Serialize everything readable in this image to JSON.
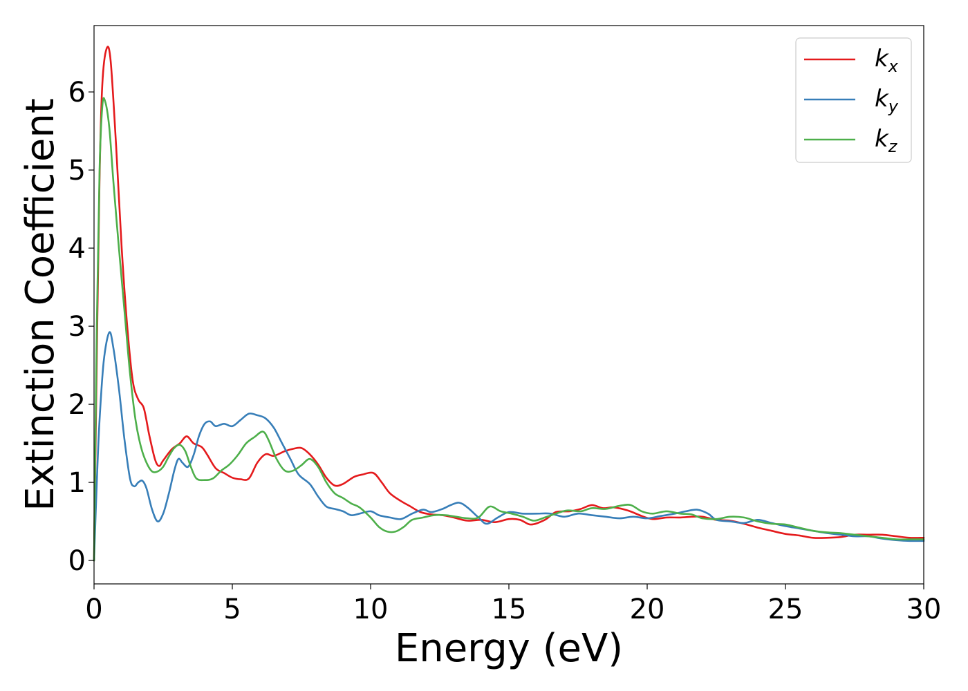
{
  "chart_data": {
    "type": "line",
    "title": "",
    "xlabel": "Energy (eV)",
    "ylabel": "Extinction Coefficient",
    "xlim": [
      0,
      30
    ],
    "ylim": [
      -0.3,
      6.85
    ],
    "xticks": [
      "0",
      "5",
      "10",
      "15",
      "20",
      "25",
      "30"
    ],
    "yticks": [
      "0",
      "1",
      "2",
      "3",
      "4",
      "5",
      "6"
    ],
    "grid": false,
    "legend_position": "top-right",
    "series": [
      {
        "name": "k",
        "subscript": "x",
        "color": "#e41a1c",
        "points": [
          [
            0,
            0
          ],
          [
            0.1,
            2.6
          ],
          [
            0.2,
            4.9
          ],
          [
            0.3,
            6.1
          ],
          [
            0.45,
            6.55
          ],
          [
            0.6,
            6.4
          ],
          [
            0.8,
            5.3
          ],
          [
            1.0,
            4.0
          ],
          [
            1.2,
            3.0
          ],
          [
            1.4,
            2.3
          ],
          [
            1.6,
            2.06
          ],
          [
            1.8,
            1.95
          ],
          [
            2.0,
            1.6
          ],
          [
            2.2,
            1.3
          ],
          [
            2.35,
            1.21
          ],
          [
            2.5,
            1.28
          ],
          [
            2.8,
            1.42
          ],
          [
            3.1,
            1.5
          ],
          [
            3.35,
            1.59
          ],
          [
            3.6,
            1.5
          ],
          [
            3.9,
            1.45
          ],
          [
            4.1,
            1.35
          ],
          [
            4.4,
            1.18
          ],
          [
            4.7,
            1.12
          ],
          [
            5.0,
            1.06
          ],
          [
            5.3,
            1.04
          ],
          [
            5.6,
            1.05
          ],
          [
            5.9,
            1.25
          ],
          [
            6.2,
            1.36
          ],
          [
            6.5,
            1.34
          ],
          [
            6.9,
            1.4
          ],
          [
            7.2,
            1.43
          ],
          [
            7.5,
            1.44
          ],
          [
            7.8,
            1.36
          ],
          [
            8.1,
            1.23
          ],
          [
            8.4,
            1.06
          ],
          [
            8.7,
            0.96
          ],
          [
            9.0,
            0.98
          ],
          [
            9.4,
            1.07
          ],
          [
            9.7,
            1.1
          ],
          [
            10.1,
            1.12
          ],
          [
            10.4,
            1.0
          ],
          [
            10.7,
            0.86
          ],
          [
            11.1,
            0.76
          ],
          [
            11.4,
            0.7
          ],
          [
            11.8,
            0.62
          ],
          [
            12.2,
            0.59
          ],
          [
            12.6,
            0.58
          ],
          [
            13.0,
            0.55
          ],
          [
            13.5,
            0.51
          ],
          [
            14.0,
            0.52
          ],
          [
            14.5,
            0.49
          ],
          [
            15.0,
            0.53
          ],
          [
            15.4,
            0.52
          ],
          [
            15.8,
            0.46
          ],
          [
            16.3,
            0.52
          ],
          [
            16.7,
            0.62
          ],
          [
            17.2,
            0.63
          ],
          [
            17.6,
            0.66
          ],
          [
            18.0,
            0.71
          ],
          [
            18.4,
            0.67
          ],
          [
            18.8,
            0.68
          ],
          [
            19.3,
            0.64
          ],
          [
            19.8,
            0.57
          ],
          [
            20.2,
            0.53
          ],
          [
            20.7,
            0.55
          ],
          [
            21.2,
            0.55
          ],
          [
            21.6,
            0.56
          ],
          [
            22.0,
            0.56
          ],
          [
            22.5,
            0.52
          ],
          [
            23.0,
            0.51
          ],
          [
            23.5,
            0.47
          ],
          [
            24.0,
            0.42
          ],
          [
            24.5,
            0.38
          ],
          [
            25.0,
            0.34
          ],
          [
            25.5,
            0.32
          ],
          [
            26.0,
            0.29
          ],
          [
            26.5,
            0.29
          ],
          [
            27.0,
            0.3
          ],
          [
            27.5,
            0.33
          ],
          [
            28.0,
            0.33
          ],
          [
            28.5,
            0.33
          ],
          [
            29.0,
            0.31
          ],
          [
            29.5,
            0.29
          ],
          [
            30.0,
            0.29
          ]
        ]
      },
      {
        "name": "k",
        "subscript": "y",
        "color": "#377eb8",
        "points": [
          [
            0,
            0
          ],
          [
            0.1,
            1.0
          ],
          [
            0.2,
            1.8
          ],
          [
            0.35,
            2.55
          ],
          [
            0.55,
            2.92
          ],
          [
            0.7,
            2.72
          ],
          [
            0.9,
            2.2
          ],
          [
            1.1,
            1.55
          ],
          [
            1.3,
            1.05
          ],
          [
            1.45,
            0.95
          ],
          [
            1.6,
            1.0
          ],
          [
            1.75,
            1.02
          ],
          [
            1.9,
            0.92
          ],
          [
            2.1,
            0.65
          ],
          [
            2.3,
            0.5
          ],
          [
            2.5,
            0.6
          ],
          [
            2.7,
            0.85
          ],
          [
            2.9,
            1.15
          ],
          [
            3.05,
            1.3
          ],
          [
            3.2,
            1.25
          ],
          [
            3.4,
            1.2
          ],
          [
            3.6,
            1.35
          ],
          [
            3.8,
            1.6
          ],
          [
            4.0,
            1.75
          ],
          [
            4.2,
            1.78
          ],
          [
            4.4,
            1.72
          ],
          [
            4.7,
            1.75
          ],
          [
            5.0,
            1.72
          ],
          [
            5.3,
            1.8
          ],
          [
            5.6,
            1.88
          ],
          [
            5.9,
            1.86
          ],
          [
            6.2,
            1.82
          ],
          [
            6.5,
            1.7
          ],
          [
            6.8,
            1.5
          ],
          [
            7.1,
            1.3
          ],
          [
            7.4,
            1.1
          ],
          [
            7.8,
            0.98
          ],
          [
            8.1,
            0.82
          ],
          [
            8.4,
            0.69
          ],
          [
            8.7,
            0.66
          ],
          [
            9.0,
            0.63
          ],
          [
            9.3,
            0.58
          ],
          [
            9.6,
            0.6
          ],
          [
            10.0,
            0.63
          ],
          [
            10.3,
            0.58
          ],
          [
            10.7,
            0.55
          ],
          [
            11.1,
            0.53
          ],
          [
            11.5,
            0.6
          ],
          [
            11.9,
            0.65
          ],
          [
            12.2,
            0.62
          ],
          [
            12.6,
            0.66
          ],
          [
            12.9,
            0.71
          ],
          [
            13.2,
            0.74
          ],
          [
            13.5,
            0.68
          ],
          [
            13.9,
            0.55
          ],
          [
            14.2,
            0.47
          ],
          [
            14.6,
            0.55
          ],
          [
            15.0,
            0.62
          ],
          [
            15.5,
            0.6
          ],
          [
            16.0,
            0.6
          ],
          [
            16.5,
            0.6
          ],
          [
            17.0,
            0.56
          ],
          [
            17.5,
            0.6
          ],
          [
            18.0,
            0.58
          ],
          [
            18.5,
            0.56
          ],
          [
            19.0,
            0.54
          ],
          [
            19.5,
            0.56
          ],
          [
            20.0,
            0.54
          ],
          [
            20.5,
            0.57
          ],
          [
            21.0,
            0.6
          ],
          [
            21.4,
            0.63
          ],
          [
            21.8,
            0.65
          ],
          [
            22.2,
            0.6
          ],
          [
            22.5,
            0.52
          ],
          [
            23.0,
            0.5
          ],
          [
            23.5,
            0.48
          ],
          [
            24.0,
            0.52
          ],
          [
            24.5,
            0.48
          ],
          [
            25.0,
            0.44
          ],
          [
            25.5,
            0.41
          ],
          [
            26.0,
            0.38
          ],
          [
            26.5,
            0.35
          ],
          [
            27.0,
            0.33
          ],
          [
            27.5,
            0.31
          ],
          [
            28.0,
            0.31
          ],
          [
            28.5,
            0.28
          ],
          [
            29.0,
            0.26
          ],
          [
            29.5,
            0.25
          ],
          [
            30.0,
            0.25
          ]
        ]
      },
      {
        "name": "k",
        "subscript": "z",
        "color": "#4daf4a",
        "points": [
          [
            0,
            0
          ],
          [
            0.1,
            3.0
          ],
          [
            0.2,
            5.0
          ],
          [
            0.3,
            5.82
          ],
          [
            0.4,
            5.88
          ],
          [
            0.55,
            5.55
          ],
          [
            0.7,
            4.85
          ],
          [
            0.9,
            4.0
          ],
          [
            1.1,
            3.2
          ],
          [
            1.3,
            2.4
          ],
          [
            1.5,
            1.8
          ],
          [
            1.7,
            1.45
          ],
          [
            1.9,
            1.25
          ],
          [
            2.1,
            1.14
          ],
          [
            2.3,
            1.14
          ],
          [
            2.5,
            1.2
          ],
          [
            2.7,
            1.33
          ],
          [
            2.9,
            1.44
          ],
          [
            3.1,
            1.48
          ],
          [
            3.3,
            1.4
          ],
          [
            3.5,
            1.2
          ],
          [
            3.7,
            1.05
          ],
          [
            4.0,
            1.03
          ],
          [
            4.3,
            1.05
          ],
          [
            4.6,
            1.15
          ],
          [
            4.9,
            1.23
          ],
          [
            5.2,
            1.35
          ],
          [
            5.5,
            1.5
          ],
          [
            5.8,
            1.58
          ],
          [
            6.1,
            1.65
          ],
          [
            6.3,
            1.55
          ],
          [
            6.6,
            1.3
          ],
          [
            6.9,
            1.15
          ],
          [
            7.2,
            1.15
          ],
          [
            7.5,
            1.22
          ],
          [
            7.8,
            1.3
          ],
          [
            8.1,
            1.2
          ],
          [
            8.4,
            1.0
          ],
          [
            8.7,
            0.86
          ],
          [
            9.0,
            0.8
          ],
          [
            9.3,
            0.73
          ],
          [
            9.6,
            0.68
          ],
          [
            10.0,
            0.55
          ],
          [
            10.3,
            0.43
          ],
          [
            10.6,
            0.37
          ],
          [
            10.9,
            0.37
          ],
          [
            11.2,
            0.43
          ],
          [
            11.5,
            0.52
          ],
          [
            11.9,
            0.55
          ],
          [
            12.3,
            0.58
          ],
          [
            12.7,
            0.58
          ],
          [
            13.1,
            0.56
          ],
          [
            13.5,
            0.54
          ],
          [
            13.9,
            0.55
          ],
          [
            14.3,
            0.69
          ],
          [
            14.7,
            0.63
          ],
          [
            15.1,
            0.6
          ],
          [
            15.5,
            0.56
          ],
          [
            15.9,
            0.51
          ],
          [
            16.3,
            0.55
          ],
          [
            16.7,
            0.6
          ],
          [
            17.1,
            0.64
          ],
          [
            17.6,
            0.63
          ],
          [
            18.0,
            0.67
          ],
          [
            18.5,
            0.66
          ],
          [
            19.0,
            0.7
          ],
          [
            19.4,
            0.71
          ],
          [
            19.8,
            0.63
          ],
          [
            20.2,
            0.6
          ],
          [
            20.7,
            0.63
          ],
          [
            21.2,
            0.6
          ],
          [
            21.6,
            0.59
          ],
          [
            22.0,
            0.54
          ],
          [
            22.5,
            0.53
          ],
          [
            23.0,
            0.56
          ],
          [
            23.5,
            0.55
          ],
          [
            24.0,
            0.5
          ],
          [
            24.5,
            0.47
          ],
          [
            25.0,
            0.46
          ],
          [
            25.5,
            0.42
          ],
          [
            26.0,
            0.38
          ],
          [
            26.5,
            0.36
          ],
          [
            27.0,
            0.35
          ],
          [
            27.5,
            0.33
          ],
          [
            28.0,
            0.31
          ],
          [
            28.5,
            0.29
          ],
          [
            29.0,
            0.27
          ],
          [
            29.5,
            0.27
          ],
          [
            30.0,
            0.27
          ]
        ]
      }
    ]
  }
}
